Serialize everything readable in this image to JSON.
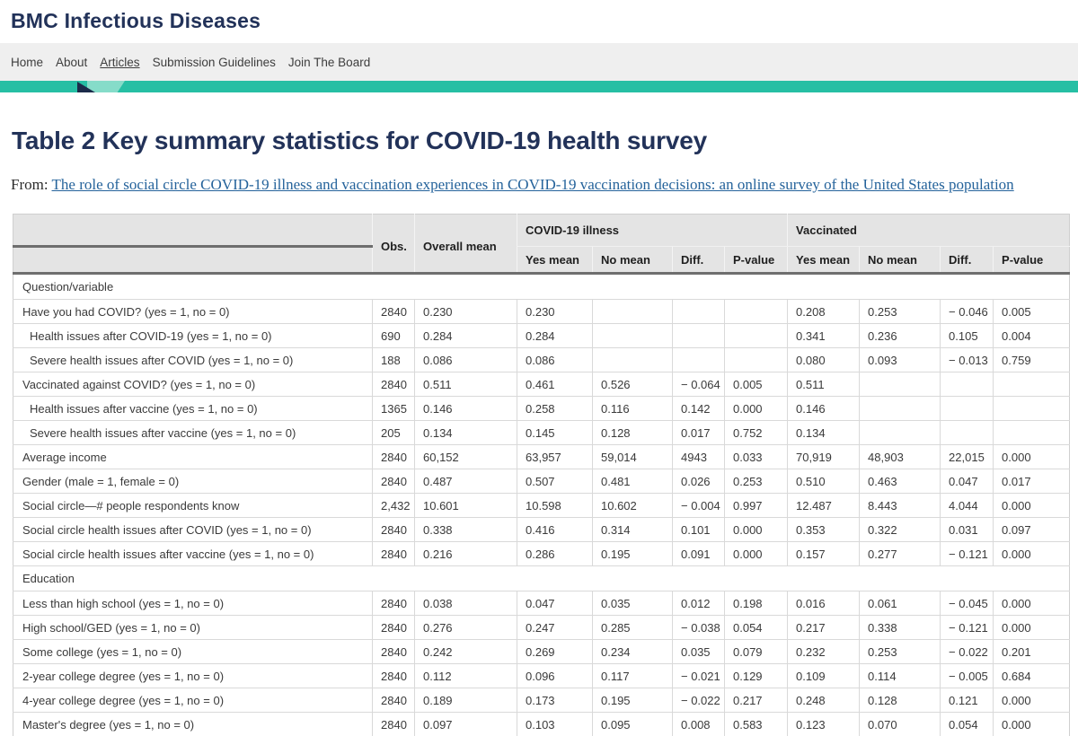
{
  "site": {
    "name": "BMC Infectious Diseases"
  },
  "nav": {
    "items": [
      "Home",
      "About",
      "Articles",
      "Submission Guidelines",
      "Join The Board"
    ],
    "active_item": "Articles"
  },
  "page": {
    "title": "Table 2 Key summary statistics for COVID-19 health survey",
    "from_label": "From:",
    "source_article": "The role of social circle COVID-19 illness and vaccination experiences in COVID-19 vaccination decisions: an online survey of the United States population"
  },
  "colors": {
    "brand_navy": "#223259",
    "brand_teal": "#26bfa4",
    "link_blue": "#25639b",
    "table_header_gray": "#e4e4e4",
    "thick_rule_gray": "#6e6e6e"
  },
  "table": {
    "header": {
      "corner": "",
      "obs": "Obs.",
      "overall": "Overall mean",
      "groups": [
        "COVID-19 illness",
        "Vaccinated"
      ],
      "subs": [
        "Yes mean",
        "No mean",
        "Diff.",
        "P-value",
        "Yes mean",
        "No mean",
        "Diff.",
        "P-value"
      ]
    },
    "rows": [
      {
        "section": "Question/variable"
      },
      {
        "label": "Have you had COVID? (yes = 1, no = 0)",
        "indent": 0,
        "cells": [
          "2840",
          "0.230",
          "0.230",
          "",
          "",
          "",
          "0.208",
          "0.253",
          "− 0.046",
          "0.005"
        ]
      },
      {
        "label": "Health issues after COVID-19 (yes = 1, no = 0)",
        "indent": 1,
        "cells": [
          "690",
          "0.284",
          "0.284",
          "",
          "",
          "",
          "0.341",
          "0.236",
          "0.105",
          "0.004"
        ]
      },
      {
        "label": "Severe health issues after COVID (yes = 1, no = 0)",
        "indent": 1,
        "cells": [
          "188",
          "0.086",
          "0.086",
          "",
          "",
          "",
          "0.080",
          "0.093",
          "− 0.013",
          "0.759"
        ]
      },
      {
        "label": "Vaccinated against COVID? (yes = 1, no = 0)",
        "indent": 0,
        "cells": [
          "2840",
          "0.511",
          "0.461",
          "0.526",
          "− 0.064",
          "0.005",
          "0.511",
          "",
          "",
          ""
        ]
      },
      {
        "label": "Health issues after vaccine (yes = 1, no = 0)",
        "indent": 1,
        "cells": [
          "1365",
          "0.146",
          "0.258",
          "0.116",
          "0.142",
          "0.000",
          "0.146",
          "",
          "",
          ""
        ]
      },
      {
        "label": "Severe health issues after vaccine (yes = 1, no = 0)",
        "indent": 1,
        "cells": [
          "205",
          "0.134",
          "0.145",
          "0.128",
          "0.017",
          "0.752",
          "0.134",
          "",
          "",
          ""
        ]
      },
      {
        "label": "Average income",
        "indent": 0,
        "cells": [
          "2840",
          "60,152",
          "63,957",
          "59,014",
          "4943",
          "0.033",
          "70,919",
          "48,903",
          "22,015",
          "0.000"
        ]
      },
      {
        "label": "Gender (male = 1, female = 0)",
        "indent": 0,
        "cells": [
          "2840",
          "0.487",
          "0.507",
          "0.481",
          "0.026",
          "0.253",
          "0.510",
          "0.463",
          "0.047",
          "0.017"
        ]
      },
      {
        "label": "Social circle—# people respondents know",
        "indent": 0,
        "cells": [
          "2,432",
          "10.601",
          "10.598",
          "10.602",
          "− 0.004",
          "0.997",
          "12.487",
          "8.443",
          "4.044",
          "0.000"
        ]
      },
      {
        "label": "Social circle health issues after COVID (yes = 1, no = 0)",
        "indent": 0,
        "cells": [
          "2840",
          "0.338",
          "0.416",
          "0.314",
          "0.101",
          "0.000",
          "0.353",
          "0.322",
          "0.031",
          "0.097"
        ]
      },
      {
        "label": "Social circle health issues  after vaccine (yes = 1, no = 0)",
        "indent": 0,
        "cells": [
          "2840",
          "0.216",
          "0.286",
          "0.195",
          "0.091",
          "0.000",
          "0.157",
          "0.277",
          "− 0.121",
          "0.000"
        ]
      },
      {
        "section": "Education"
      },
      {
        "label": "Less than high school (yes = 1, no = 0)",
        "indent": 0,
        "cells": [
          "2840",
          "0.038",
          "0.047",
          "0.035",
          "0.012",
          "0.198",
          "0.016",
          "0.061",
          "− 0.045",
          "0.000"
        ]
      },
      {
        "label": "High school/GED (yes = 1, no = 0)",
        "indent": 0,
        "cells": [
          "2840",
          "0.276",
          "0.247",
          "0.285",
          "− 0.038",
          "0.054",
          "0.217",
          "0.338",
          "− 0.121",
          "0.000"
        ]
      },
      {
        "label": "Some college (yes = 1, no = 0)",
        "indent": 0,
        "cells": [
          "2840",
          "0.242",
          "0.269",
          "0.234",
          "0.035",
          "0.079",
          "0.232",
          "0.253",
          "− 0.022",
          "0.201"
        ]
      },
      {
        "label": "2-year college degree (yes = 1, no = 0)",
        "indent": 0,
        "cells": [
          "2840",
          "0.112",
          "0.096",
          "0.117",
          "− 0.021",
          "0.129",
          "0.109",
          "0.114",
          "− 0.005",
          "0.684"
        ]
      },
      {
        "label": "4-year college degree (yes = 1, no = 0)",
        "indent": 0,
        "cells": [
          "2840",
          "0.189",
          "0.173",
          "0.195",
          "− 0.022",
          "0.217",
          "0.248",
          "0.128",
          "0.121",
          "0.000"
        ]
      },
      {
        "label": "Master's degree (yes = 1, no = 0)",
        "indent": 0,
        "cells": [
          "2840",
          "0.097",
          "0.103",
          "0.095",
          "0.008",
          "0.583",
          "0.123",
          "0.070",
          "0.054",
          "0.000"
        ]
      }
    ]
  }
}
